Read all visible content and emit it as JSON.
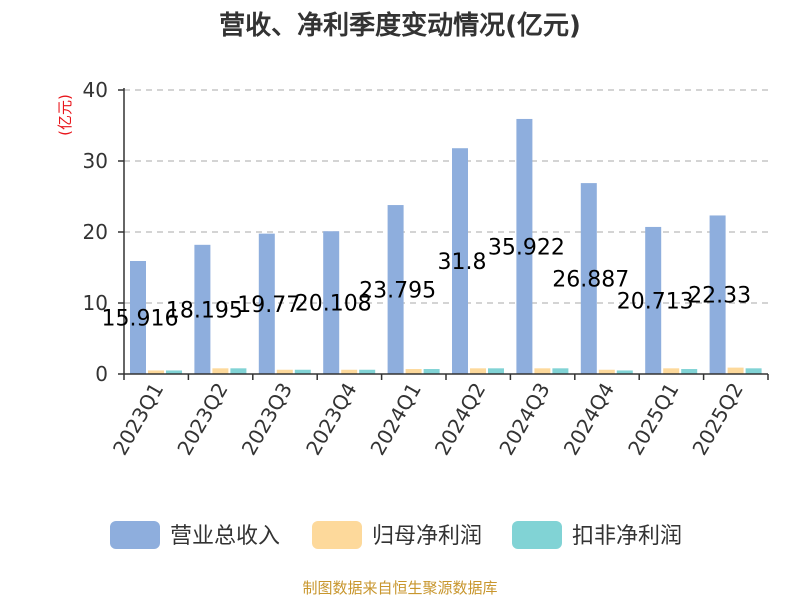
{
  "chart_data": {
    "type": "bar",
    "title": "营收、净利季度变动情况(亿元)",
    "ylabel": "(亿元)",
    "categories": [
      "2023Q1",
      "2023Q2",
      "2023Q3",
      "2023Q4",
      "2024Q1",
      "2024Q2",
      "2024Q3",
      "2024Q4",
      "2025Q1",
      "2025Q2"
    ],
    "series": [
      {
        "name": "营业总收入",
        "values": [
          15.916,
          18.195,
          19.77,
          20.108,
          23.795,
          31.8,
          35.922,
          26.887,
          20.713,
          22.33
        ],
        "labels": [
          "15.916",
          "18.195",
          "19.77",
          "20.108",
          "23.795",
          "31.8",
          "35.922",
          "26.887",
          "20.713",
          "22.33"
        ],
        "color": "#8eaedd"
      },
      {
        "name": "归母净利润",
        "values": [
          0.5,
          0.8,
          0.6,
          0.6,
          0.7,
          0.8,
          0.8,
          0.6,
          0.8,
          0.9
        ],
        "color": "#fdd99b"
      },
      {
        "name": "扣非净利润",
        "values": [
          0.5,
          0.8,
          0.6,
          0.6,
          0.7,
          0.8,
          0.8,
          0.5,
          0.7,
          0.8
        ],
        "color": "#81d3d5"
      }
    ],
    "yticks": [
      "0",
      "10",
      "20",
      "30",
      "40"
    ],
    "ylim": [
      0,
      40
    ],
    "grid": true,
    "legend_position": "bottom"
  },
  "source_text": "制图数据来自恒生聚源数据库"
}
